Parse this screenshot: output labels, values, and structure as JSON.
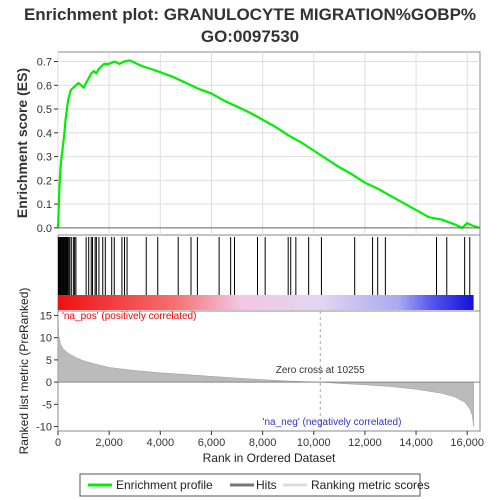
{
  "chart_data": {
    "type": "line",
    "title_line1": "Enrichment plot: GRANULOCYTE MIGRATION%GOBP%",
    "title_line2": "GO:0097530",
    "ylabel_top": "Enrichment score (ES)",
    "ylabel_bottom": "Ranked list metric (PreRanked)",
    "xlabel": "Rank in Ordered Dataset",
    "x_range": [
      0,
      16500
    ],
    "es_ylim": [
      -0.03,
      0.74
    ],
    "metric_ylim": [
      -11,
      16
    ],
    "x_ticks": [
      0,
      2000,
      4000,
      6000,
      8000,
      10000,
      12000,
      14000,
      16000
    ],
    "x_tick_labels": [
      "0",
      "2,000",
      "4,000",
      "6,000",
      "8,000",
      "10,000",
      "12,000",
      "14,000",
      "16,000"
    ],
    "es_ticks": [
      0.0,
      0.1,
      0.2,
      0.3,
      0.4,
      0.5,
      0.6,
      0.7
    ],
    "es_tick_labels": [
      "0.0",
      "0.1",
      "0.2",
      "0.3",
      "0.4",
      "0.5",
      "0.6",
      "0.7"
    ],
    "metric_ticks": [
      -10,
      -5,
      0,
      5,
      10,
      15
    ],
    "metric_tick_labels": [
      "-10",
      "-5",
      "0",
      "5",
      "10",
      "15"
    ],
    "enrichment_profile": [
      [
        0,
        0.0
      ],
      [
        20,
        0.06
      ],
      [
        40,
        0.12
      ],
      [
        60,
        0.18
      ],
      [
        90,
        0.24
      ],
      [
        120,
        0.28
      ],
      [
        150,
        0.31
      ],
      [
        200,
        0.35
      ],
      [
        250,
        0.4
      ],
      [
        300,
        0.46
      ],
      [
        350,
        0.5
      ],
      [
        400,
        0.54
      ],
      [
        450,
        0.56
      ],
      [
        500,
        0.58
      ],
      [
        600,
        0.59
      ],
      [
        700,
        0.6
      ],
      [
        800,
        0.61
      ],
      [
        900,
        0.6
      ],
      [
        1000,
        0.59
      ],
      [
        1100,
        0.61
      ],
      [
        1200,
        0.63
      ],
      [
        1300,
        0.65
      ],
      [
        1400,
        0.66
      ],
      [
        1500,
        0.65
      ],
      [
        1600,
        0.67
      ],
      [
        1700,
        0.68
      ],
      [
        1800,
        0.69
      ],
      [
        2000,
        0.69
      ],
      [
        2200,
        0.7
      ],
      [
        2400,
        0.69
      ],
      [
        2600,
        0.7
      ],
      [
        2800,
        0.705
      ],
      [
        3000,
        0.695
      ],
      [
        3300,
        0.68
      ],
      [
        3600,
        0.67
      ],
      [
        4000,
        0.655
      ],
      [
        4500,
        0.635
      ],
      [
        5000,
        0.61
      ],
      [
        5500,
        0.585
      ],
      [
        6000,
        0.565
      ],
      [
        6500,
        0.535
      ],
      [
        7000,
        0.51
      ],
      [
        7500,
        0.485
      ],
      [
        8000,
        0.455
      ],
      [
        8500,
        0.425
      ],
      [
        9000,
        0.39
      ],
      [
        9500,
        0.36
      ],
      [
        10000,
        0.325
      ],
      [
        10500,
        0.29
      ],
      [
        11000,
        0.255
      ],
      [
        11500,
        0.225
      ],
      [
        12000,
        0.19
      ],
      [
        12500,
        0.165
      ],
      [
        13000,
        0.135
      ],
      [
        13500,
        0.105
      ],
      [
        14000,
        0.075
      ],
      [
        14500,
        0.045
      ],
      [
        15000,
        0.035
      ],
      [
        15500,
        0.015
      ],
      [
        15800,
        0.0
      ],
      [
        16000,
        0.02
      ],
      [
        16200,
        0.01
      ],
      [
        16500,
        0.0
      ]
    ],
    "hits": [
      20,
      50,
      80,
      110,
      140,
      170,
      200,
      230,
      260,
      290,
      320,
      350,
      380,
      420,
      460,
      520,
      600,
      650,
      700,
      1100,
      1200,
      1300,
      1350,
      1450,
      1500,
      1600,
      1750,
      1850,
      2100,
      2200,
      2500,
      2600,
      2700,
      3450,
      3900,
      4700,
      5200,
      5450,
      6300,
      6750,
      6900,
      7800,
      8100,
      9000,
      9100,
      9300,
      9800,
      10300,
      11600,
      12300,
      12500,
      12800,
      14800,
      15200,
      15900,
      16100
    ],
    "metric_curve": [
      [
        0,
        16
      ],
      [
        30,
        10.5
      ],
      [
        100,
        8.5
      ],
      [
        200,
        7.5
      ],
      [
        400,
        6.5
      ],
      [
        700,
        5.5
      ],
      [
        1000,
        4.8
      ],
      [
        1500,
        4.0
      ],
      [
        2000,
        3.3
      ],
      [
        3000,
        2.6
      ],
      [
        4000,
        2.1
      ],
      [
        5000,
        1.7
      ],
      [
        6000,
        1.3
      ],
      [
        7000,
        0.9
      ],
      [
        8000,
        0.55
      ],
      [
        9000,
        0.25
      ],
      [
        10255,
        0.0
      ],
      [
        11000,
        -0.3
      ],
      [
        12000,
        -0.6
      ],
      [
        13000,
        -1.0
      ],
      [
        14000,
        -1.6
      ],
      [
        15000,
        -2.5
      ],
      [
        15500,
        -3.3
      ],
      [
        15900,
        -4.5
      ],
      [
        16100,
        -6.0
      ],
      [
        16200,
        -7.5
      ],
      [
        16250,
        -10
      ]
    ],
    "zero_cross": 10255,
    "zero_cross_label": "Zero cross at 10255",
    "pos_label": "'na_pos' (positively correlated)",
    "neg_label": "'na_neg' (negatively correlated)",
    "legend": [
      "Enrichment profile",
      "Hits",
      "Ranking metric scores"
    ],
    "colors": {
      "profile": "#00ee00",
      "hits": "#000000",
      "metric_fill": "#bbbbbb",
      "pos_text": "#ee0000",
      "neg_text": "#3333cc",
      "grid": "#dddddd"
    }
  }
}
